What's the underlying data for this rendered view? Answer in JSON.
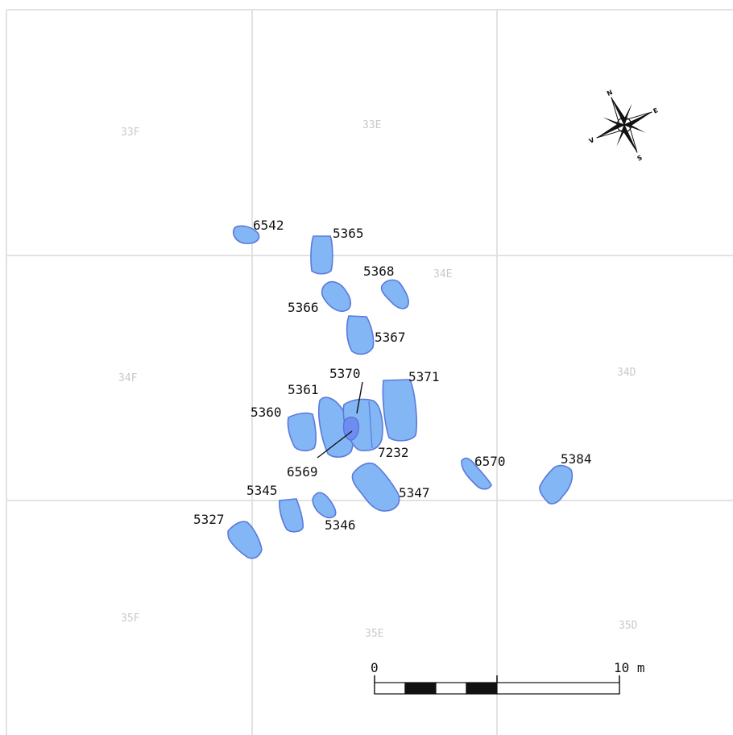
{
  "grid": {
    "labels": [
      "33F",
      "33E",
      "34E",
      "34F",
      "34D",
      "35F",
      "35E",
      "35D"
    ]
  },
  "features": [
    {
      "id": "6542",
      "label": "6542"
    },
    {
      "id": "5365",
      "label": "5365"
    },
    {
      "id": "5368",
      "label": "5368"
    },
    {
      "id": "5366",
      "label": "5366"
    },
    {
      "id": "5367",
      "label": "5367"
    },
    {
      "id": "5370",
      "label": "5370"
    },
    {
      "id": "5371",
      "label": "5371"
    },
    {
      "id": "5361",
      "label": "5361"
    },
    {
      "id": "5360",
      "label": "5360"
    },
    {
      "id": "7232",
      "label": "7232"
    },
    {
      "id": "6569",
      "label": "6569"
    },
    {
      "id": "6570",
      "label": "6570"
    },
    {
      "id": "5384",
      "label": "5384"
    },
    {
      "id": "5345",
      "label": "5345"
    },
    {
      "id": "5347",
      "label": "5347"
    },
    {
      "id": "5346",
      "label": "5346"
    },
    {
      "id": "5327",
      "label": "5327"
    }
  ],
  "compass": {
    "letters": [
      "N",
      "E",
      "S",
      "V"
    ]
  },
  "scale_bar": {
    "start_label": "0",
    "end_label": "10 m"
  }
}
